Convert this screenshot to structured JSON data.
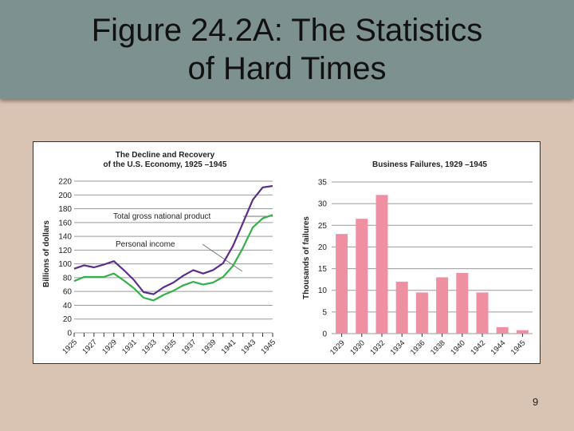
{
  "slide": {
    "title_line1": "Figure 24.2A: The Statistics",
    "title_line2": "of Hard Times",
    "page_number": "9"
  },
  "colors": {
    "background": "#d9c3b3",
    "title_band": "#7c9190",
    "gnp_line": "#5b2d8c",
    "income_line": "#34b04a",
    "bar": "#ef8fa2"
  },
  "chart_data": [
    {
      "type": "line",
      "title_line1": "The Decline and Recovery",
      "title_line2": "of the U.S. Economy, 1925 –1945",
      "ylabel": "Billions of dollars",
      "xlabel": "",
      "ylim": [
        0,
        220
      ],
      "yticks": [
        0,
        20,
        40,
        60,
        80,
        100,
        120,
        140,
        160,
        180,
        200,
        220
      ],
      "xlim": [
        1925,
        1945
      ],
      "xticks": [
        "1925",
        "1927",
        "1929",
        "1931",
        "1933",
        "1935",
        "1937",
        "1939",
        "1941",
        "1943",
        "1945"
      ],
      "grid": true,
      "series": [
        {
          "name": "Total gross national product",
          "color": "#5b2d8c",
          "x": [
            1925,
            1926,
            1927,
            1928,
            1929,
            1930,
            1931,
            1932,
            1933,
            1934,
            1935,
            1936,
            1937,
            1938,
            1939,
            1940,
            1941,
            1942,
            1943,
            1944,
            1945
          ],
          "y": [
            93,
            98,
            95,
            99,
            104,
            91,
            77,
            59,
            56,
            66,
            73,
            83,
            91,
            86,
            91,
            101,
            126,
            159,
            193,
            211,
            213
          ]
        },
        {
          "name": "Personal income",
          "color": "#34b04a",
          "x": [
            1925,
            1926,
            1927,
            1928,
            1929,
            1930,
            1931,
            1932,
            1933,
            1934,
            1935,
            1936,
            1937,
            1938,
            1939,
            1940,
            1941,
            1942,
            1943,
            1944,
            1945
          ],
          "y": [
            75,
            81,
            81,
            81,
            86,
            76,
            65,
            51,
            47,
            55,
            61,
            69,
            74,
            70,
            73,
            81,
            97,
            123,
            153,
            166,
            171
          ]
        }
      ]
    },
    {
      "type": "bar",
      "title": "Business Failures, 1929 –1945",
      "ylabel": "Thousands of failures",
      "xlabel": "",
      "ylim": [
        0,
        35
      ],
      "yticks": [
        0,
        5,
        10,
        15,
        20,
        25,
        30,
        35
      ],
      "grid": true,
      "color": "#ef8fa2",
      "categories": [
        "1929",
        "1930",
        "1932",
        "1934",
        "1936",
        "1938",
        "1940",
        "1942",
        "1944",
        "1945"
      ],
      "values": [
        23,
        26.5,
        32,
        12,
        9.5,
        13,
        14,
        9.5,
        1.5,
        0.8
      ]
    }
  ]
}
